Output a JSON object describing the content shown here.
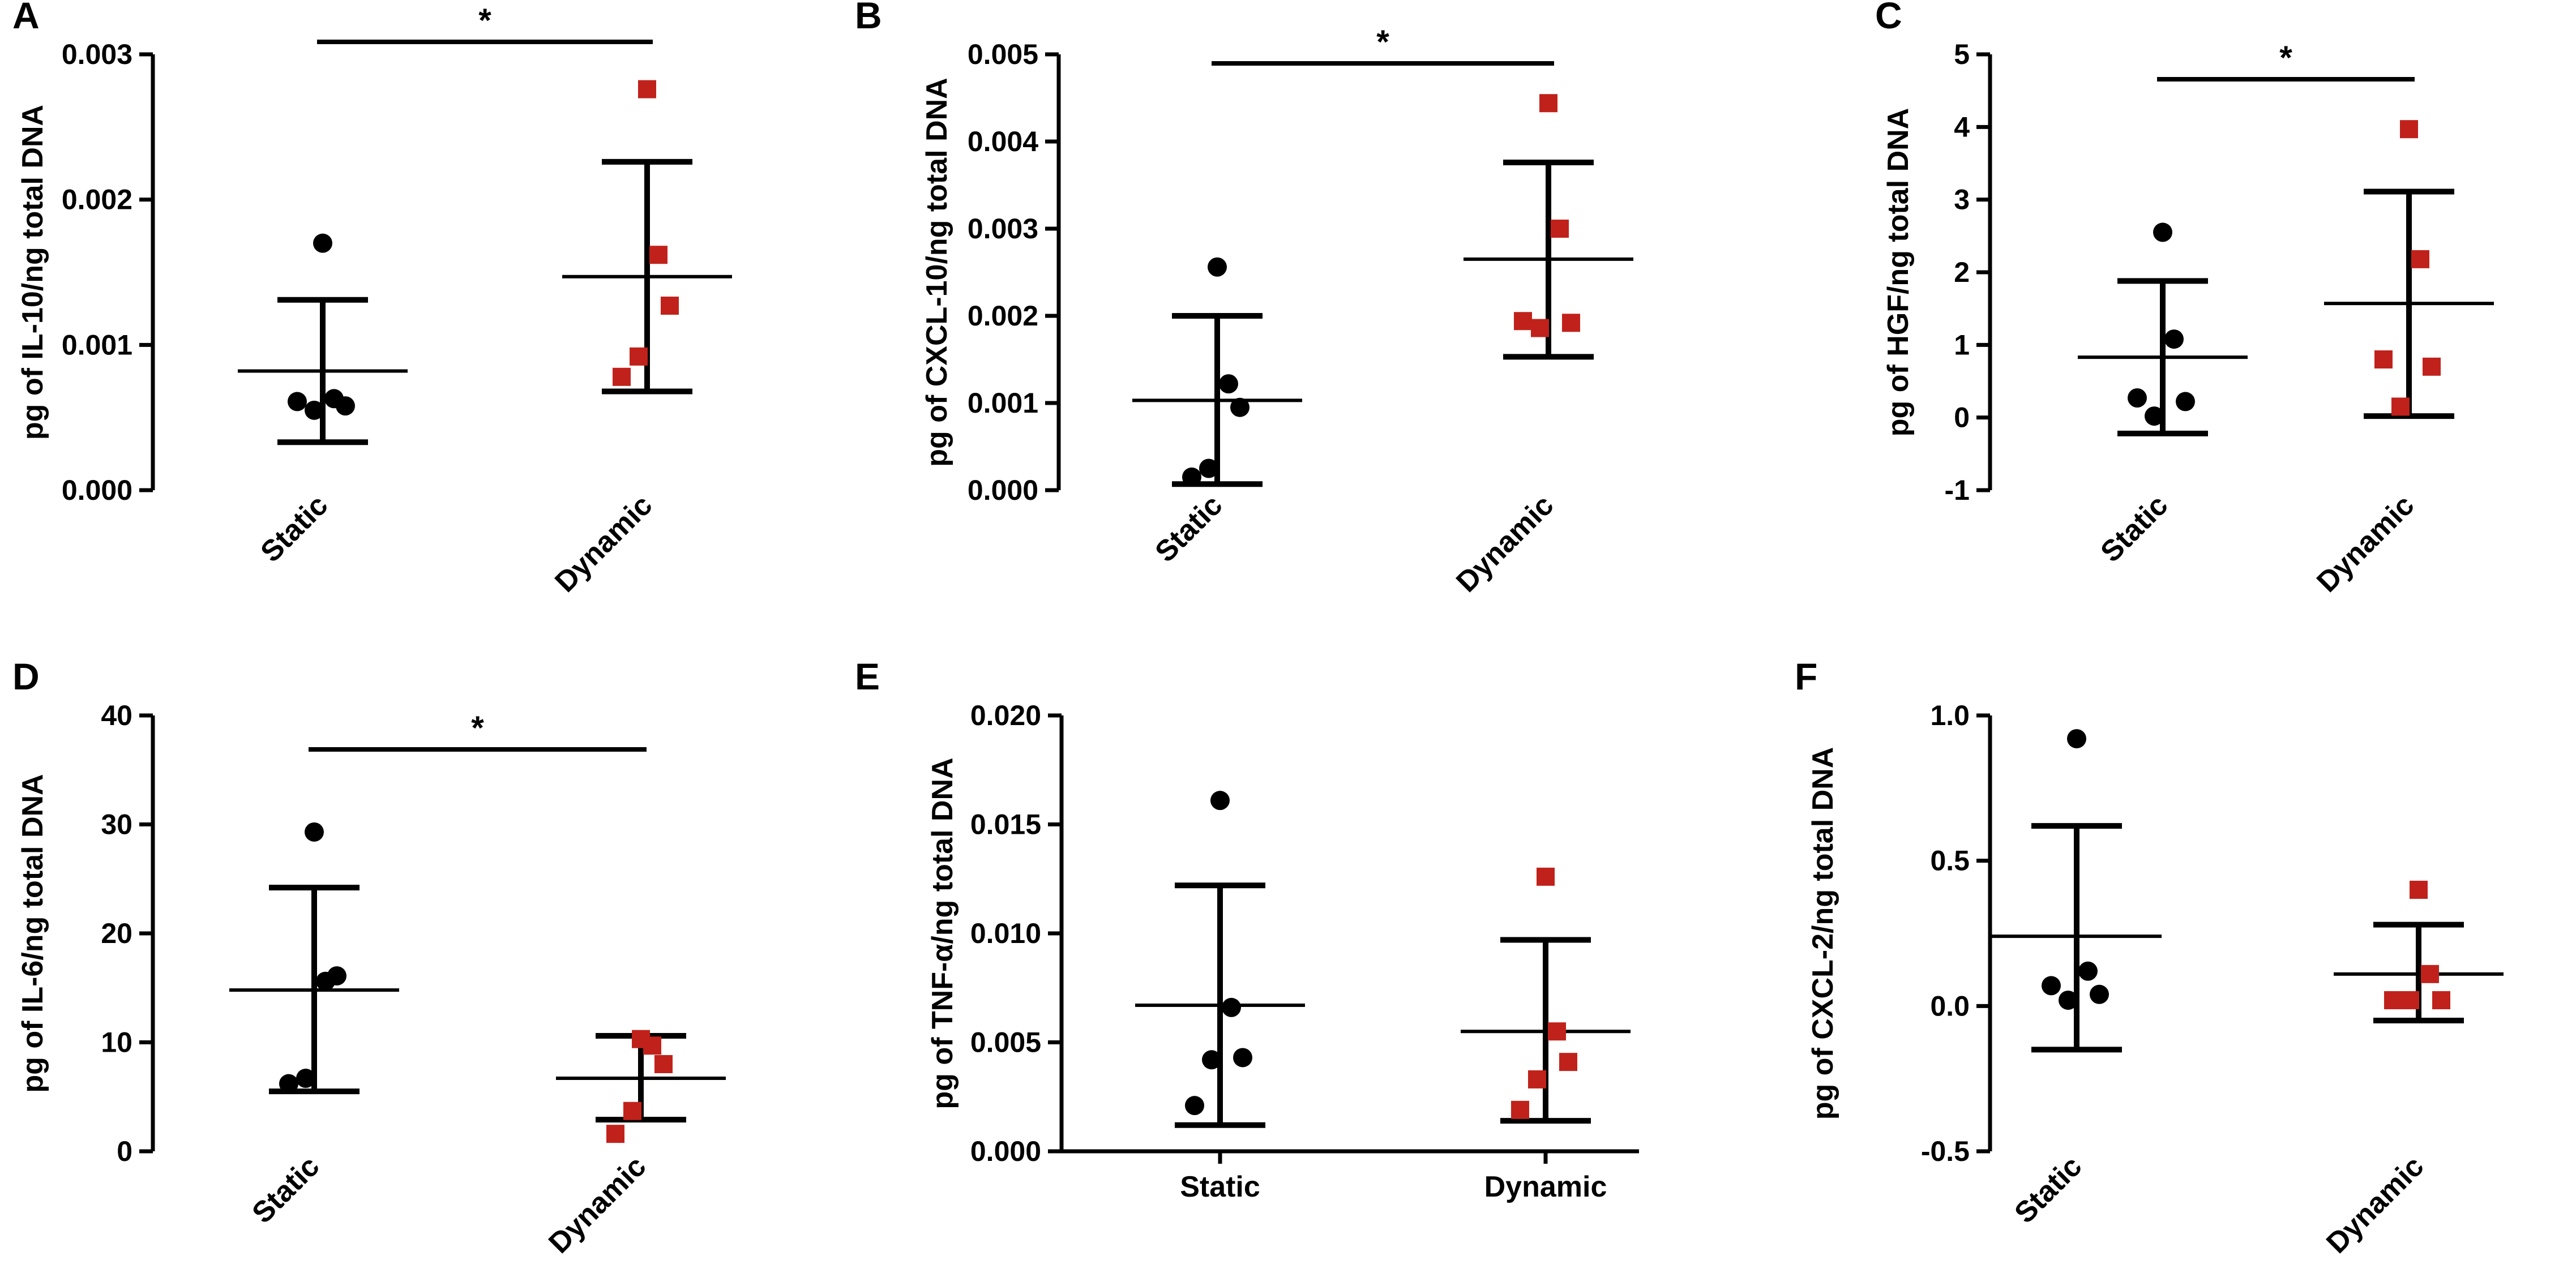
{
  "chart_data": [
    {
      "type": "scatter",
      "panel_label": "A",
      "ylabel": "pg of  IL-10/ng total DNA",
      "ylim": [
        0,
        0.003
      ],
      "yticks": [
        0,
        0.001,
        0.002,
        0.003
      ],
      "ytick_labels": [
        "0.000",
        "0.001",
        "0.002",
        "0.003"
      ],
      "categories": [
        "Static",
        "Dynamic"
      ],
      "rotated_categories": true,
      "significance": "*",
      "series": [
        {
          "name": "Static",
          "marker": "circle",
          "color": "#000000",
          "values": [
            0.00061,
            0.00055,
            0.00058,
            0.00063,
            0.0017
          ],
          "mean": 0.00082,
          "err_low": 0.00033,
          "err_high": 0.00131
        },
        {
          "name": "Dynamic",
          "marker": "square",
          "color": "#c0221b",
          "values": [
            0.00078,
            0.00092,
            0.00127,
            0.00162,
            0.00276
          ],
          "mean": 0.00147,
          "err_low": 0.00068,
          "err_high": 0.00226
        }
      ]
    },
    {
      "type": "scatter",
      "panel_label": "B",
      "ylabel": "pg of  CXCL-10/ng total DNA",
      "ylim": [
        0,
        0.005
      ],
      "yticks": [
        0,
        0.001,
        0.002,
        0.003,
        0.004,
        0.005
      ],
      "ytick_labels": [
        "0.000",
        "0.001",
        "0.002",
        "0.003",
        "0.004",
        "0.005"
      ],
      "categories": [
        "Static",
        "Dynamic"
      ],
      "rotated_categories": true,
      "significance": "*",
      "series": [
        {
          "name": "Static",
          "marker": "circle",
          "color": "#000000",
          "values": [
            0.00015,
            0.00025,
            0.00095,
            0.00122,
            0.00256
          ],
          "mean": 0.00103,
          "err_low": 7e-05,
          "err_high": 0.002
        },
        {
          "name": "Dynamic",
          "marker": "square",
          "color": "#c0221b",
          "values": [
            0.00194,
            0.00186,
            0.00192,
            0.003,
            0.00444
          ],
          "mean": 0.00265,
          "err_low": 0.00153,
          "err_high": 0.00376
        }
      ]
    },
    {
      "type": "scatter",
      "panel_label": "C",
      "ylabel": "pg of  HGF/ng total DNA",
      "ylim": [
        -1,
        5
      ],
      "yticks": [
        -1,
        0,
        1,
        2,
        3,
        4,
        5
      ],
      "ytick_labels": [
        "-1",
        "0",
        "1",
        "2",
        "3",
        "4",
        "5"
      ],
      "categories": [
        "Static",
        "Dynamic"
      ],
      "rotated_categories": true,
      "significance": "*",
      "series": [
        {
          "name": "Static",
          "marker": "circle",
          "color": "#000000",
          "values": [
            0.27,
            0.02,
            0.22,
            1.08,
            2.55
          ],
          "mean": 0.83,
          "err_low": -0.22,
          "err_high": 1.88
        },
        {
          "name": "Dynamic",
          "marker": "square",
          "color": "#c0221b",
          "values": [
            0.8,
            0.15,
            0.7,
            2.18,
            3.97
          ],
          "mean": 1.57,
          "err_low": 0.02,
          "err_high": 3.11
        }
      ]
    },
    {
      "type": "scatter",
      "panel_label": "D",
      "ylabel": "pg of  IL-6/ng total DNA",
      "ylim": [
        0,
        40
      ],
      "yticks": [
        0,
        10,
        20,
        30,
        40
      ],
      "ytick_labels": [
        "0",
        "10",
        "20",
        "30",
        "40"
      ],
      "categories": [
        "Static",
        "Dynamic"
      ],
      "rotated_categories": true,
      "significance": "*",
      "series": [
        {
          "name": "Static",
          "marker": "circle",
          "color": "#000000",
          "values": [
            6.2,
            6.7,
            16.1,
            15.6,
            29.3
          ],
          "mean": 14.8,
          "err_low": 5.5,
          "err_high": 24.2
        },
        {
          "name": "Dynamic",
          "marker": "square",
          "color": "#c0221b",
          "values": [
            1.6,
            3.7,
            8.0,
            9.7,
            10.3
          ],
          "mean": 6.7,
          "err_low": 2.9,
          "err_high": 10.6
        }
      ]
    },
    {
      "type": "scatter",
      "panel_label": "E",
      "ylabel": "pg of  TNF-α/ng total DNA",
      "ylim": [
        0,
        0.02
      ],
      "yticks": [
        0,
        0.005,
        0.01,
        0.015,
        0.02
      ],
      "ytick_labels": [
        "0.000",
        "0.005",
        "0.010",
        "0.015",
        "0.020"
      ],
      "categories": [
        "Static",
        "Dynamic"
      ],
      "rotated_categories": false,
      "significance": "",
      "series": [
        {
          "name": "Static",
          "marker": "circle",
          "color": "#000000",
          "values": [
            0.0021,
            0.0042,
            0.0043,
            0.0066,
            0.0161
          ],
          "mean": 0.0067,
          "err_low": 0.0012,
          "err_high": 0.0122
        },
        {
          "name": "Dynamic",
          "marker": "square",
          "color": "#c0221b",
          "values": [
            0.0019,
            0.0033,
            0.0041,
            0.0055,
            0.0126
          ],
          "mean": 0.0055,
          "err_low": 0.0014,
          "err_high": 0.0097
        }
      ]
    },
    {
      "type": "scatter",
      "panel_label": "F",
      "ylabel": "pg of  CXCL-2/ng total DNA",
      "ylim": [
        -0.5,
        1.0
      ],
      "yticks": [
        -0.5,
        0,
        0.5,
        1.0
      ],
      "ytick_labels": [
        "-0.5",
        "0.0",
        "0.5",
        "1.0"
      ],
      "categories": [
        "Static",
        "Dynamic"
      ],
      "rotated_categories": true,
      "significance": "",
      "series": [
        {
          "name": "Static",
          "marker": "circle",
          "color": "#000000",
          "values": [
            0.07,
            0.02,
            0.04,
            0.12,
            0.92
          ],
          "mean": 0.24,
          "err_low": -0.15,
          "err_high": 0.62
        },
        {
          "name": "Dynamic",
          "marker": "square",
          "color": "#c0221b",
          "values": [
            0.02,
            0.02,
            0.02,
            0.11,
            0.4
          ],
          "mean": 0.11,
          "err_low": -0.05,
          "err_high": 0.28
        }
      ]
    }
  ]
}
